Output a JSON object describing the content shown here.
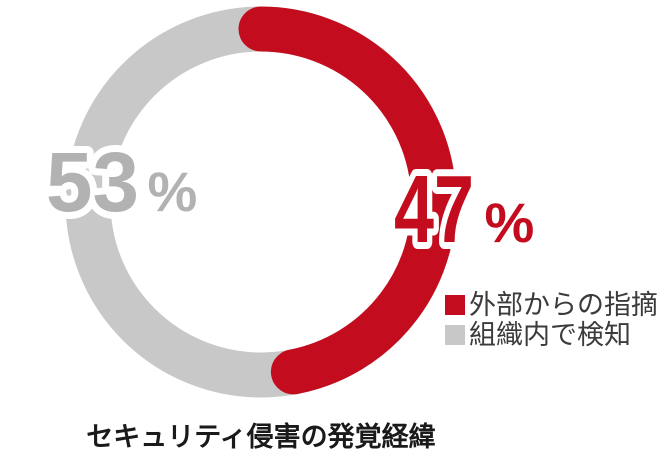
{
  "chart_data": {
    "type": "pie",
    "subtype": "donut",
    "title": "セキュリティ侵害の発覚経緯",
    "categories": [
      "外部からの指摘",
      "組織内で検知"
    ],
    "values": [
      47,
      53
    ],
    "unit": "%",
    "direction": "clockwise",
    "start_angle_deg": 0,
    "legend_position": "right",
    "grid": false,
    "colors": {
      "external_red": "#C30D1E",
      "internal_gray": "#C8C8C8",
      "gray_value_label": "#B2B2B2",
      "legend_text": "#3B3B3B",
      "title_text": "#1A1A1A"
    },
    "value_labels": {
      "external": "47",
      "internal": "53",
      "suffix": "%"
    }
  }
}
